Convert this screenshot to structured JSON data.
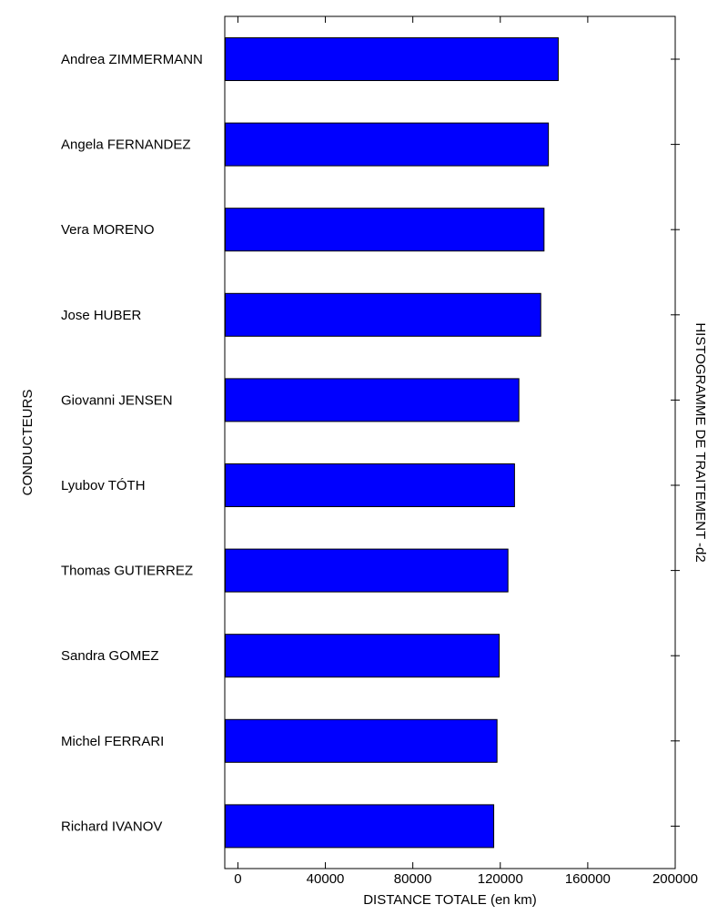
{
  "chart_data": {
    "type": "bar",
    "orientation": "horizontal",
    "title": "HISTOGRAMME DE TRAITEMENT -d2",
    "xlabel": "DISTANCE TOTALE (en km)",
    "ylabel": "CONDUCTEURS",
    "xlim": [
      -6000,
      200000
    ],
    "xticks": [
      0,
      40000,
      80000,
      120000,
      160000,
      200000
    ],
    "xtick_labels": [
      "0",
      "40000",
      "80000",
      "120000",
      "160000",
      "200000"
    ],
    "categories": [
      "Andrea ZIMMERMANN",
      "Angela FERNANDEZ",
      "Vera MORENO",
      "Jose HUBER",
      "Giovanni JENSEN",
      "Lyubov TÓTH",
      "Thomas GUTIERREZ",
      "Sandra GOMEZ",
      "Michel FERRARI",
      "Richard IVANOV"
    ],
    "values": [
      146500,
      142000,
      140000,
      138500,
      128500,
      126500,
      123500,
      119500,
      118500,
      117000
    ],
    "bar_color": "#0000ff",
    "grid": false,
    "legend": "none"
  }
}
